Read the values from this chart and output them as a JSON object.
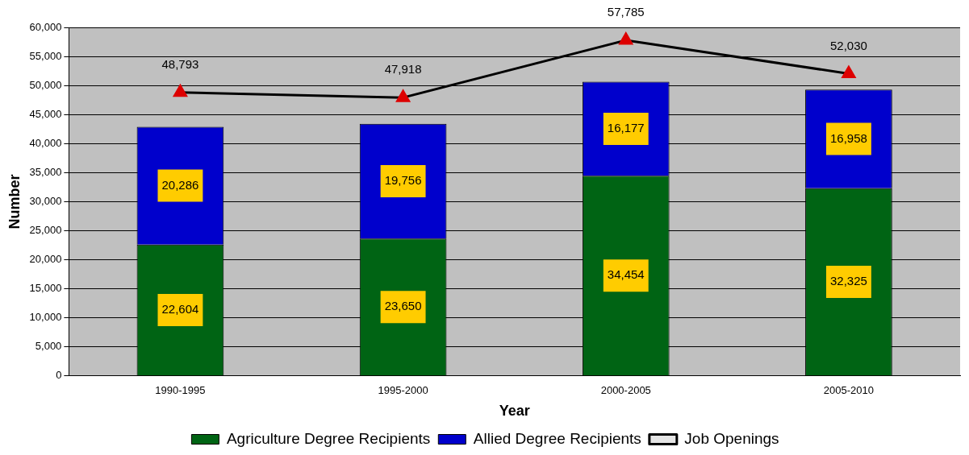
{
  "chart_data": {
    "type": "bar",
    "xlabel": "Year",
    "ylabel": "Number",
    "categories": [
      "1990-1995",
      "1995-2000",
      "2000-2005",
      "2005-2010"
    ],
    "stacked": true,
    "ylim": [
      0,
      60000
    ],
    "yticks": [
      {
        "value": 0,
        "label": "0"
      },
      {
        "value": 5000,
        "label": "5,000"
      },
      {
        "value": 10000,
        "label": "10,000"
      },
      {
        "value": 15000,
        "label": "15,000"
      },
      {
        "value": 20000,
        "label": "20,000"
      },
      {
        "value": 25000,
        "label": "25,000"
      },
      {
        "value": 30000,
        "label": "30,000"
      },
      {
        "value": 35000,
        "label": "35,000"
      },
      {
        "value": 40000,
        "label": "40,000"
      },
      {
        "value": 45000,
        "label": "45,000"
      },
      {
        "value": 50000,
        "label": "50,000"
      },
      {
        "value": 55000,
        "label": "55,000"
      },
      {
        "value": 60000,
        "label": "60,000"
      }
    ],
    "grid": "y",
    "legend": "bottom",
    "marker": "triangle",
    "series": [
      {
        "name": "Agriculture Degree Recipients",
        "color": "#006414",
        "values": [
          22604,
          23650,
          34454,
          32325
        ],
        "value_labels": [
          "22,604",
          "23,650",
          "34,454",
          "32,325"
        ]
      },
      {
        "name": "Allied Degree Recipients",
        "color": "#0000cc",
        "values": [
          20286,
          19756,
          16177,
          16958
        ],
        "value_labels": [
          "20,286",
          "19,756",
          "16,177",
          "16,958"
        ]
      },
      {
        "name": "Job Openings",
        "type": "line",
        "color": "#000000",
        "colors": [
          "#dd0000",
          "#dd0000",
          "#dd0000",
          "#dd0000"
        ],
        "values": [
          48793,
          47918,
          57785,
          52030
        ],
        "value_labels": [
          "48,793",
          "47,918",
          "57,785",
          "52,030"
        ]
      }
    ]
  }
}
